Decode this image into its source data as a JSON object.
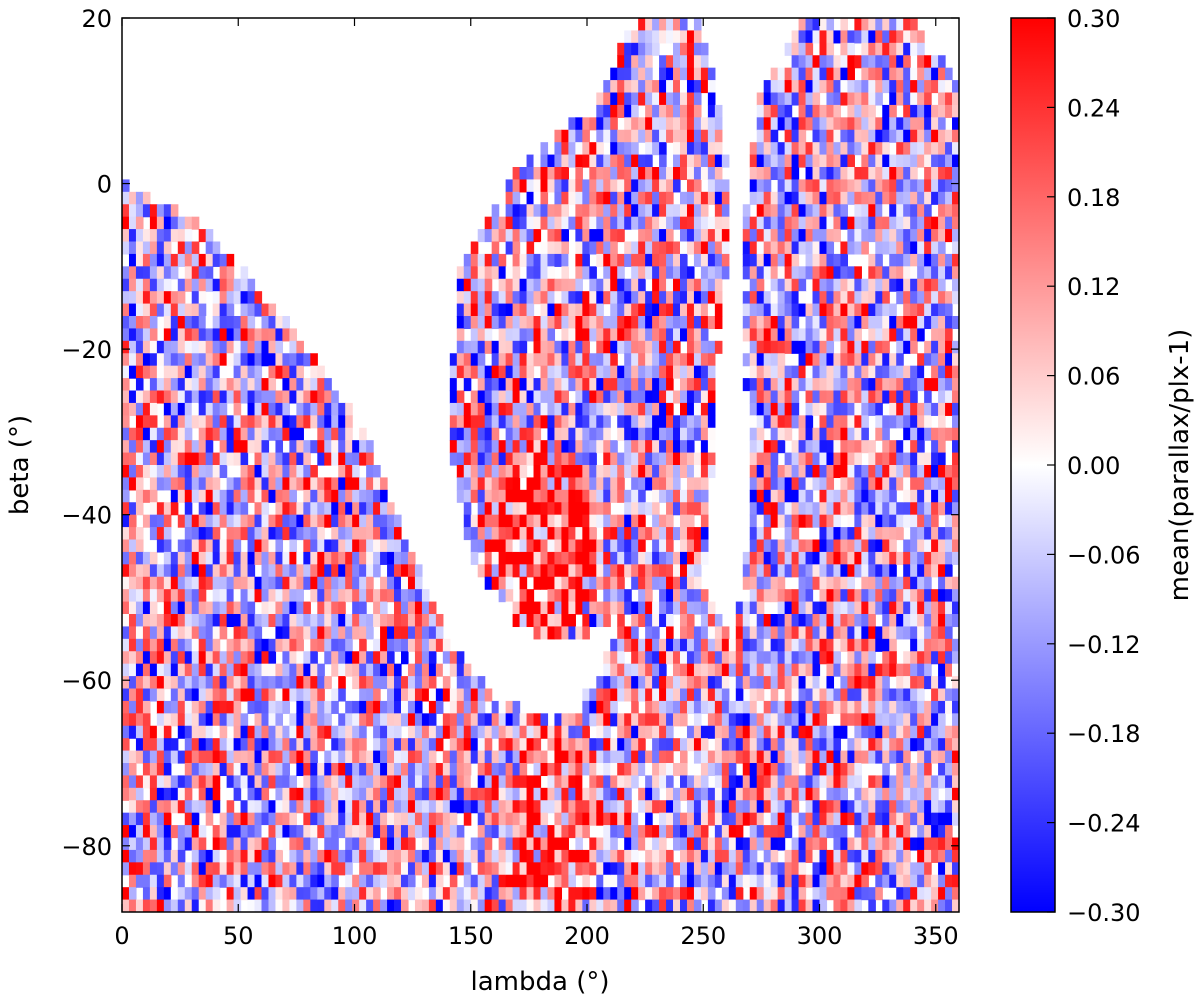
{
  "chart_data": {
    "type": "heatmap",
    "title": "",
    "xlabel": "lambda (°)",
    "ylabel": "beta (°)",
    "xlim": [
      0,
      360
    ],
    "ylim": [
      -88,
      20
    ],
    "xticks": [
      0,
      50,
      100,
      150,
      200,
      250,
      300,
      350
    ],
    "yticks": [
      20,
      0,
      -20,
      -40,
      -60,
      -80
    ],
    "xtick_labels": [
      "0",
      "50",
      "100",
      "150",
      "200",
      "250",
      "300",
      "350"
    ],
    "ytick_labels": [
      "20",
      "0",
      "−20",
      "−40",
      "−60",
      "−80"
    ],
    "colorbar": {
      "label": "mean(parallax/plx-1)",
      "colormap": "bwr",
      "vmin": -0.3,
      "vmax": 0.3,
      "ticks": [
        0.3,
        0.24,
        0.18,
        0.12,
        0.06,
        0.0,
        -0.06,
        -0.12,
        -0.18,
        -0.24,
        -0.3
      ],
      "tick_labels": [
        "0.30",
        "0.24",
        "0.18",
        "0.12",
        "0.06",
        "0.00",
        "−0.06",
        "−0.12",
        "−0.18",
        "−0.24",
        "−0.30"
      ],
      "colors": {
        "low": "#0000ff",
        "mid": "#ffffff",
        "high": "#ff0000"
      }
    },
    "grid": false,
    "regions": [
      {
        "description": "strong positive cluster",
        "lambda_range": [
          160,
          200
        ],
        "beta_range": [
          -55,
          -30
        ],
        "mean_value": 0.25
      },
      {
        "description": "positive concentration near south pole",
        "lambda_range": [
          170,
          210
        ],
        "beta_range": [
          -88,
          -65
        ],
        "mean_value": 0.2
      },
      {
        "description": "empty (no data) band",
        "shape": "curved",
        "note": "white area with no coverage"
      }
    ]
  }
}
